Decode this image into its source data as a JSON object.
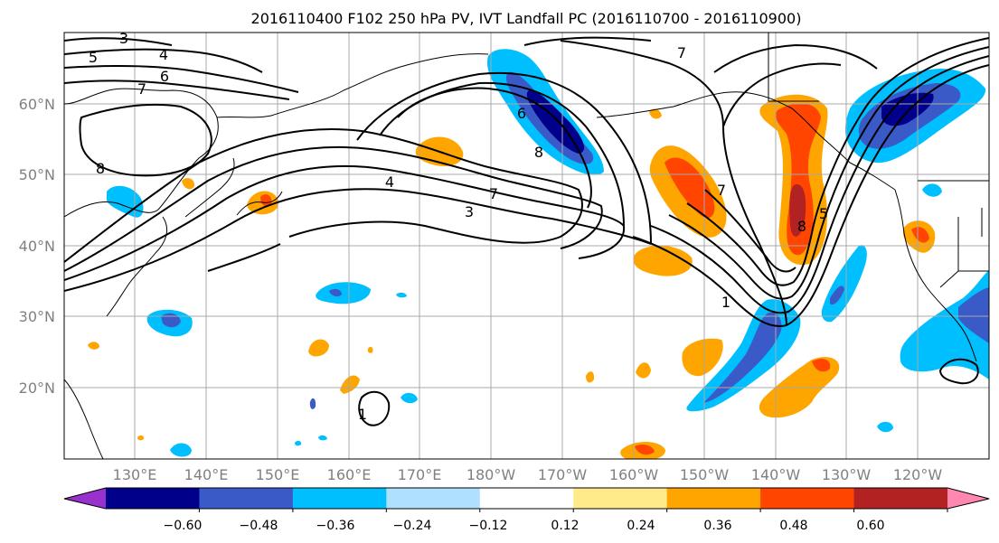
{
  "title": "2016110400 F102 250 hPa PV, IVT Landfall PC (2016110700 - 2016110900)",
  "latitude_labels": [
    "60°N",
    "50°N",
    "40°N",
    "30°N",
    "20°N"
  ],
  "longitude_labels": [
    "130°E",
    "140°E",
    "150°E",
    "160°E",
    "170°E",
    "180°W",
    "170°W",
    "160°W",
    "150°W",
    "140°W",
    "130°W",
    "120°W"
  ],
  "contour_labels": [
    "3",
    "4",
    "5",
    "6",
    "7",
    "8",
    "6",
    "8",
    "7",
    "4",
    "7",
    "3",
    "7",
    "8",
    "5",
    "1",
    "1"
  ],
  "colorbar": {
    "tick_labels": [
      "−0.60",
      "−0.48",
      "−0.36",
      "−0.24",
      "−0.12",
      "0.12",
      "0.24",
      "0.36",
      "0.48",
      "0.60"
    ],
    "colors": [
      "#9932cc",
      "#00008b",
      "#3a5bc7",
      "#00bfff",
      "#b0e0ff",
      "#ffffff",
      "#ffeb8a",
      "#ffa500",
      "#ff4500",
      "#b22222",
      "#ff88b0"
    ]
  }
}
